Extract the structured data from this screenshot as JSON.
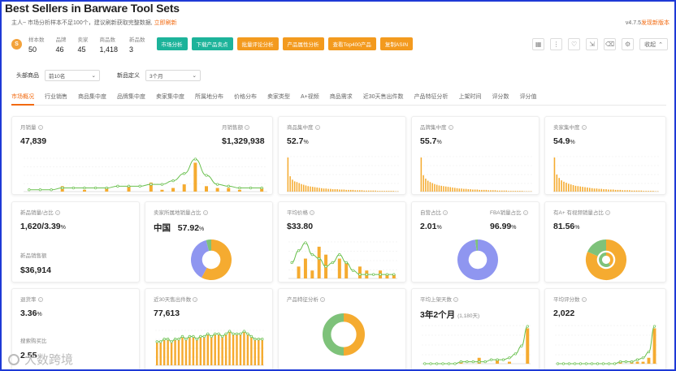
{
  "header": {
    "title": "Best Sellers in Barware Tool Sets",
    "notice": "主人~ 市场分析样本不足100个，建议刷新获取完整数据, ",
    "refresh_link": "立即刷新",
    "version": "v4.7.5",
    "new_version_link": "发现新版本",
    "logo_letter": "S"
  },
  "stats": [
    {
      "label": "样本数",
      "value": "50"
    },
    {
      "label": "品牌",
      "value": "46"
    },
    {
      "label": "卖家",
      "value": "45"
    },
    {
      "label": "商品数",
      "value": "1,418"
    },
    {
      "label": "新品数",
      "value": "3"
    }
  ],
  "buttons": [
    "市场分析",
    "下载产品卖点",
    "批量评论分析",
    "产品属性分析",
    "查看Top400产品",
    "复制ASIN"
  ],
  "toolbar": {
    "collapse_label": "收起"
  },
  "filters": {
    "top_label": "头部商品",
    "top_value": "前10名",
    "new_label": "新品定义",
    "new_value": "3个月"
  },
  "tabs": [
    "市场概况",
    "行业销售",
    "商品集中度",
    "品牌集中度",
    "卖家集中度",
    "所属地分布",
    "价格分布",
    "卖家类型",
    "A+视频",
    "商品需求",
    "近30天售出件数",
    "产品特征分析",
    "上架时间",
    "评分数",
    "评分值"
  ],
  "cards": {
    "monthly_sales": {
      "label": "月销量",
      "value": "47,839",
      "label2": "月销售额",
      "value2": "$1,329,938"
    },
    "product_conc": {
      "label": "商品集中度",
      "value": "52.7",
      "unit": "%"
    },
    "brand_conc": {
      "label": "品牌集中度",
      "value": "55.7",
      "unit": "%"
    },
    "seller_conc": {
      "label": "卖家集中度",
      "value": "54.9",
      "unit": "%"
    },
    "new_product": {
      "label": "新品销量/占比",
      "value": "1,620/3.39",
      "unit": "%",
      "label2": "新品销售额",
      "value2": "$36,914"
    },
    "seller_location": {
      "label": "卖家所属地销量占比",
      "country": "中国",
      "value": "57.92",
      "unit": "%"
    },
    "avg_price": {
      "label": "平均价格",
      "value": "$33.80"
    },
    "self_operated": {
      "label": "自营占比",
      "value": "2.01",
      "unit": "%",
      "label2": "FBA销量占比",
      "value2": "96.99",
      "unit2": "%"
    },
    "aplus": {
      "label": "有A+ 有视频销量占比",
      "value": "81.56",
      "unit": "%"
    },
    "return_rate": {
      "label": "退货率",
      "value": "3.36",
      "unit": "%",
      "label2": "搜索购买比",
      "value2": "2.55"
    },
    "sales_30d": {
      "label": "近30天售出件数",
      "value": "77,613"
    },
    "feature": {
      "label": "产品特征分析"
    },
    "listing_days": {
      "label": "平均上架天数",
      "value": "3年2个月",
      "sub": "(1,180天)"
    },
    "rating_count": {
      "label": "平均评分数",
      "value": "2,022"
    }
  },
  "colors": {
    "accent": "#f26a10",
    "teal": "#1db39a",
    "orange": "#f39a1e",
    "bar": "#f5ab30",
    "line": "#69c04e",
    "purple": "#8f96f0",
    "green": "#7ec27a"
  },
  "chart_data": [
    {
      "type": "bar",
      "name": "monthly-sales",
      "bars": [
        0,
        0,
        0,
        3,
        0,
        1,
        0,
        2,
        0,
        3,
        0,
        5,
        1,
        2,
        4,
        16,
        3,
        2,
        2,
        1,
        0,
        2
      ],
      "line": [
        1,
        1,
        1,
        2,
        2,
        2,
        2,
        2,
        3,
        3,
        3,
        4,
        4,
        6,
        10,
        18,
        9,
        4,
        3,
        2,
        2,
        2
      ]
    },
    {
      "type": "bar",
      "name": "product-concentration",
      "bars": [
        100,
        45,
        35,
        30,
        28,
        25,
        22,
        20,
        18,
        16,
        15,
        14,
        13,
        12,
        11,
        10,
        9,
        9,
        8,
        8,
        7,
        7,
        7,
        6,
        6,
        6,
        5,
        5,
        5,
        5,
        4,
        4,
        4,
        4,
        3,
        3,
        3,
        3,
        3,
        3,
        2,
        2,
        2,
        2,
        2,
        2,
        2,
        2,
        1,
        1
      ]
    },
    {
      "type": "bar",
      "name": "brand-concentration",
      "bars": [
        100,
        48,
        38,
        32,
        28,
        25,
        22,
        20,
        18,
        17,
        16,
        15,
        14,
        13,
        12,
        11,
        10,
        9,
        9,
        8,
        8,
        7,
        7,
        6,
        6,
        6,
        5,
        5,
        5,
        5,
        4,
        4,
        4,
        4,
        3,
        3,
        3,
        3,
        3,
        2,
        2,
        2,
        2,
        2,
        2,
        2,
        1,
        1,
        1,
        1
      ]
    },
    {
      "type": "bar",
      "name": "seller-concentration",
      "bars": [
        100,
        50,
        40,
        33,
        29,
        26,
        23,
        21,
        19,
        17,
        16,
        15,
        14,
        13,
        12,
        11,
        10,
        9,
        9,
        8,
        8,
        7,
        7,
        6,
        6,
        6,
        5,
        5,
        5,
        4,
        4,
        4,
        4,
        3,
        3,
        3,
        3,
        3,
        2,
        2,
        2,
        2,
        2,
        1,
        1
      ]
    },
    {
      "type": "bar",
      "name": "avg-price",
      "bars": [
        0,
        3,
        5,
        2,
        8,
        6,
        0,
        5,
        4,
        0,
        3,
        2,
        0,
        2,
        1,
        1
      ],
      "line": [
        4,
        7,
        9,
        6,
        5,
        3,
        4,
        6,
        4,
        2,
        1,
        1,
        1,
        1,
        1,
        1
      ]
    },
    {
      "type": "bar",
      "name": "sales-30day",
      "bars": [
        9,
        9,
        10,
        10,
        9,
        10,
        10,
        11,
        10,
        11,
        11,
        10,
        11,
        11,
        12,
        11,
        12,
        12,
        11,
        12,
        13,
        12,
        12,
        12,
        13,
        12,
        11,
        10,
        10,
        10
      ],
      "line": [
        9,
        9,
        10,
        10,
        9,
        10,
        10,
        11,
        10,
        11,
        11,
        10,
        11,
        11,
        12,
        11,
        12,
        12,
        11,
        12,
        13,
        12,
        12,
        12,
        13,
        12,
        11,
        10,
        10,
        10
      ]
    },
    {
      "type": "bar",
      "name": "avg-listing-days",
      "bars": [
        0,
        0,
        0,
        0,
        0,
        0,
        1,
        0,
        0,
        3,
        0,
        0,
        2,
        0,
        1,
        0,
        0,
        18
      ],
      "line": [
        0,
        0,
        0,
        0,
        0,
        0,
        1,
        1,
        1,
        1,
        1,
        2,
        2,
        2,
        3,
        5,
        9,
        19
      ]
    },
    {
      "type": "bar",
      "name": "avg-rating-count",
      "bars": [
        0,
        0,
        0,
        0,
        0,
        0,
        0,
        0,
        0,
        0,
        0,
        1,
        0,
        1,
        1,
        1,
        3,
        18
      ],
      "line": [
        0,
        0,
        0,
        0,
        0,
        0,
        0,
        0,
        0,
        0,
        0,
        1,
        1,
        1,
        2,
        3,
        6,
        19
      ]
    }
  ],
  "donuts": [
    {
      "name": "seller-location",
      "segments": [
        {
          "value": 57.92,
          "color": "#f5ab30"
        },
        {
          "value": 38,
          "color": "#8f96f0"
        },
        {
          "value": 4.08,
          "color": "#7ec27a"
        }
      ],
      "inner": 0.45
    },
    {
      "name": "self-operated",
      "segments": [
        {
          "value": 97.99,
          "color": "#8f96f0"
        },
        {
          "value": 2.01,
          "color": "#7ec27a"
        }
      ],
      "inner": 0.45
    },
    {
      "name": "aplus",
      "segments": [
        {
          "value": 81.56,
          "color": "#f5ab30"
        },
        {
          "value": 18.44,
          "color": "#7ec27a"
        }
      ],
      "inner": 0.45,
      "inner_ring": [
        {
          "value": 40,
          "color": "#f5ab30"
        },
        {
          "value": 60,
          "color": "#7ec27a"
        }
      ]
    },
    {
      "name": "feature-analysis",
      "segments": [
        {
          "value": 50,
          "color": "#f5ab30"
        },
        {
          "value": 50,
          "color": "#7ec27a"
        }
      ],
      "inner": 0.6
    }
  ],
  "watermark": {
    "text": "大数跨境"
  }
}
